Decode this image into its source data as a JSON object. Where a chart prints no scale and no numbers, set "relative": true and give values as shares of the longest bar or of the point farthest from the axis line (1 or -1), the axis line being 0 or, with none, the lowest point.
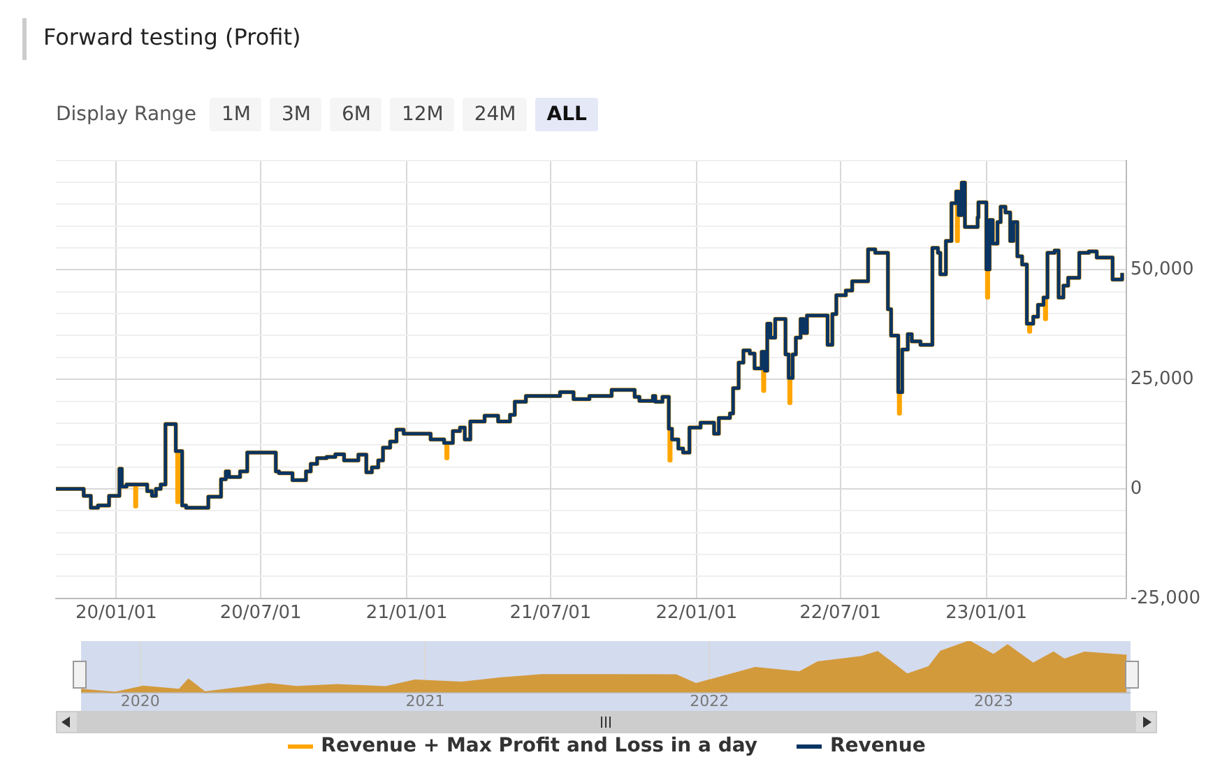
{
  "chart_data": [
    {
      "type": "step",
      "title": "Forward testing (Profit)",
      "annotations": [
        "Display Range",
        "1M",
        "3M",
        "6M",
        "12M",
        "24M",
        "ALL"
      ],
      "legend": "bottom",
      "grid": true,
      "xlim": [
        "2019-10-17",
        "2023-06-26"
      ],
      "xticks": [
        {
          "value": "2020-01-01",
          "label": "20/01/01"
        },
        {
          "value": "2020-07-01",
          "label": "20/07/01"
        },
        {
          "value": "2021-01-01",
          "label": "21/01/01"
        },
        {
          "value": "2021-07-01",
          "label": "21/07/01"
        },
        {
          "value": "2022-01-01",
          "label": "22/01/01"
        },
        {
          "value": "2022-07-01",
          "label": "22/07/01"
        },
        {
          "value": "2023-01-01",
          "label": "23/01/01"
        }
      ],
      "ylim": [
        -25000,
        75000
      ],
      "yticks": [
        {
          "value": -25000,
          "label": "-25,000"
        },
        {
          "value": -20000,
          "label": null
        },
        {
          "value": -15000,
          "label": null
        },
        {
          "value": -10000,
          "label": null
        },
        {
          "value": -5000,
          "label": null
        },
        0,
        {
          "value": 5000,
          "label": null
        },
        {
          "value": 10000,
          "label": null
        },
        {
          "value": 15000,
          "label": null
        },
        {
          "value": 20000,
          "label": null
        },
        {
          "value": 25000,
          "label": "25,000"
        },
        {
          "value": 30000,
          "label": null
        },
        {
          "value": 35000,
          "label": null
        },
        {
          "value": 40000,
          "label": null
        },
        {
          "value": 45000,
          "label": null
        },
        {
          "value": 50000,
          "label": "50,000"
        },
        {
          "value": 55000,
          "label": null
        },
        {
          "value": 60000,
          "label": null
        },
        {
          "value": 65000,
          "label": null
        },
        {
          "value": 70000,
          "label": null
        },
        {
          "value": 75000,
          "label": null
        }
      ],
      "series": [
        {
          "name": "Revenue + Max Profit and Loss in a day",
          "color": "#ffa500",
          "x": [
            "2019-10-17",
            "2019-11-21",
            "2019-11-30",
            "2019-12-09",
            "2019-12-23",
            "2020-01-05",
            "2020-01-08",
            "2020-01-14",
            "2020-01-25",
            "2020-01-26",
            "2020-02-09",
            "2020-02-15",
            "2020-02-20",
            "2020-02-26",
            "2020-03-03",
            "2020-03-16",
            "2020-03-18",
            "2020-03-19",
            "2020-03-24",
            "2020-03-29",
            "2020-04-26",
            "2020-05-12",
            "2020-05-18",
            "2020-05-22",
            "2020-06-05",
            "2020-06-14",
            "2020-07-20",
            "2020-07-24",
            "2020-08-10",
            "2020-08-27",
            "2020-09-02",
            "2020-09-10",
            "2020-09-22",
            "2020-10-03",
            "2020-10-14",
            "2020-11-01",
            "2020-11-11",
            "2020-11-18",
            "2020-11-26",
            "2020-12-02",
            "2020-12-11",
            "2020-12-19",
            "2020-12-28",
            "2021-01-31",
            "2021-02-17",
            "2021-02-20",
            "2021-02-21",
            "2021-02-28",
            "2021-03-09",
            "2021-03-15",
            "2021-03-22",
            "2021-04-09",
            "2021-04-26",
            "2021-05-11",
            "2021-05-17",
            "2021-05-31",
            "2021-07-13",
            "2021-07-30",
            "2021-08-19",
            "2021-09-16",
            "2021-10-15",
            "2021-10-21",
            "2021-11-07",
            "2021-11-10",
            "2021-11-19",
            "2021-11-27",
            "2021-11-28",
            "2021-11-29",
            "2021-12-01",
            "2021-12-09",
            "2021-12-15",
            "2021-12-23",
            "2022-01-06",
            "2022-01-23",
            "2022-01-29",
            "2022-02-12",
            "2022-02-16",
            "2022-02-23",
            "2022-03-01",
            "2022-03-09",
            "2022-03-15",
            "2022-03-24",
            "2022-03-26",
            "2022-03-27",
            "2022-03-28",
            "2022-03-31",
            "2022-04-04",
            "2022-04-10",
            "2022-04-23",
            "2022-04-27",
            "2022-04-28",
            "2022-04-29",
            "2022-05-02",
            "2022-05-06",
            "2022-05-12",
            "2022-05-16",
            "2022-05-20",
            "2022-06-15",
            "2022-06-21",
            "2022-06-26",
            "2022-07-08",
            "2022-07-16",
            "2022-08-05",
            "2022-08-14",
            "2022-08-30",
            "2022-09-03",
            "2022-09-12",
            "2022-09-13",
            "2022-09-14",
            "2022-09-17",
            "2022-09-24",
            "2022-09-29",
            "2022-10-10",
            "2022-10-25",
            "2022-11-01",
            "2022-11-04",
            "2022-11-11",
            "2022-11-18",
            "2022-11-24",
            "2022-11-25",
            "2022-11-26",
            "2022-11-27",
            "2022-12-01",
            "2022-12-05",
            "2022-12-21",
            "2022-12-22",
            "2023-01-01",
            "2023-01-02",
            "2023-01-03",
            "2023-01-05",
            "2023-01-09",
            "2023-01-15",
            "2023-01-19",
            "2023-01-25",
            "2023-01-31",
            "2023-02-04",
            "2023-02-09",
            "2023-02-15",
            "2023-02-21",
            "2023-02-24",
            "2023-02-25",
            "2023-03-01",
            "2023-03-07",
            "2023-03-14",
            "2023-03-16",
            "2023-03-17",
            "2023-03-19",
            "2023-03-28",
            "2023-04-02",
            "2023-04-08",
            "2023-04-14",
            "2023-04-28",
            "2023-05-10",
            "2023-05-20",
            "2023-06-09",
            "2023-06-21"
          ],
          "values": [
            0,
            -1600,
            -4300,
            -3800,
            -1600,
            4600,
            500,
            1000,
            -4000,
            1000,
            -500,
            -1600,
            0,
            1000,
            14800,
            8600,
            -3000,
            8600,
            -3800,
            -4300,
            -1800,
            2200,
            4000,
            2700,
            4000,
            8300,
            4000,
            3600,
            2000,
            4000,
            5700,
            7000,
            7300,
            7900,
            6500,
            7800,
            3800,
            4900,
            6500,
            9400,
            10800,
            13500,
            12600,
            11300,
            10500,
            7000,
            10500,
            13200,
            14000,
            11300,
            15400,
            16700,
            15400,
            16900,
            19900,
            21200,
            22100,
            20500,
            21200,
            22600,
            21000,
            20100,
            21200,
            19900,
            21000,
            13700,
            6500,
            13700,
            11300,
            9200,
            8300,
            14000,
            15100,
            12600,
            16200,
            17200,
            23000,
            28800,
            31600,
            30900,
            27500,
            31300,
            22400,
            31300,
            27000,
            37700,
            34500,
            38800,
            30700,
            25300,
            19600,
            25300,
            30700,
            34500,
            38800,
            35600,
            39600,
            32900,
            39900,
            44200,
            45300,
            47400,
            54700,
            53900,
            41000,
            35000,
            22100,
            17200,
            22100,
            31800,
            35300,
            33700,
            32900,
            55000,
            53900,
            49000,
            56600,
            65200,
            67900,
            56600,
            67900,
            62500,
            69900,
            59800,
            62000,
            65400,
            50100,
            43700,
            50100,
            61400,
            56000,
            60900,
            64400,
            63100,
            56600,
            60900,
            53100,
            51200,
            37700,
            35900,
            37700,
            39300,
            42000,
            43700,
            38800,
            43700,
            53900,
            54400,
            43700,
            46400,
            48200,
            53900,
            54200,
            52800,
            47800,
            49300
          ]
        },
        {
          "name": "Revenue",
          "color": "#0a3462",
          "x": [
            "2019-10-17",
            "2019-11-21",
            "2019-11-30",
            "2019-12-09",
            "2019-12-23",
            "2020-01-05",
            "2020-01-08",
            "2020-01-14",
            "2020-02-09",
            "2020-02-15",
            "2020-02-20",
            "2020-02-26",
            "2020-03-03",
            "2020-03-16",
            "2020-03-24",
            "2020-03-29",
            "2020-04-26",
            "2020-05-12",
            "2020-05-18",
            "2020-05-22",
            "2020-06-05",
            "2020-06-14",
            "2020-07-20",
            "2020-07-24",
            "2020-08-10",
            "2020-08-27",
            "2020-09-02",
            "2020-09-10",
            "2020-09-22",
            "2020-10-03",
            "2020-10-14",
            "2020-11-01",
            "2020-11-11",
            "2020-11-18",
            "2020-11-26",
            "2020-12-02",
            "2020-12-11",
            "2020-12-19",
            "2020-12-28",
            "2021-01-31",
            "2021-02-17",
            "2021-02-28",
            "2021-03-09",
            "2021-03-15",
            "2021-03-22",
            "2021-04-09",
            "2021-04-26",
            "2021-05-11",
            "2021-05-17",
            "2021-05-31",
            "2021-07-13",
            "2021-07-30",
            "2021-08-19",
            "2021-09-16",
            "2021-10-15",
            "2021-10-21",
            "2021-11-07",
            "2021-11-10",
            "2021-11-19",
            "2021-11-27",
            "2021-12-01",
            "2021-12-09",
            "2021-12-15",
            "2021-12-23",
            "2022-01-06",
            "2022-01-23",
            "2022-01-29",
            "2022-02-12",
            "2022-02-16",
            "2022-02-23",
            "2022-03-01",
            "2022-03-09",
            "2022-03-15",
            "2022-03-24",
            "2022-03-28",
            "2022-03-31",
            "2022-04-04",
            "2022-04-10",
            "2022-04-23",
            "2022-04-27",
            "2022-05-02",
            "2022-05-06",
            "2022-05-12",
            "2022-05-16",
            "2022-05-20",
            "2022-06-15",
            "2022-06-21",
            "2022-06-26",
            "2022-07-08",
            "2022-07-16",
            "2022-08-05",
            "2022-08-14",
            "2022-08-30",
            "2022-09-03",
            "2022-09-12",
            "2022-09-17",
            "2022-09-24",
            "2022-09-29",
            "2022-10-10",
            "2022-10-25",
            "2022-11-01",
            "2022-11-04",
            "2022-11-11",
            "2022-11-18",
            "2022-11-24",
            "2022-11-27",
            "2022-12-01",
            "2022-12-05",
            "2022-12-21",
            "2022-12-22",
            "2023-01-01",
            "2023-01-05",
            "2023-01-09",
            "2023-01-15",
            "2023-01-19",
            "2023-01-25",
            "2023-01-31",
            "2023-02-04",
            "2023-02-09",
            "2023-02-15",
            "2023-02-21",
            "2023-03-01",
            "2023-03-07",
            "2023-03-14",
            "2023-03-19",
            "2023-03-28",
            "2023-04-02",
            "2023-04-08",
            "2023-04-14",
            "2023-04-28",
            "2023-05-10",
            "2023-05-20",
            "2023-06-09",
            "2023-06-21"
          ],
          "values": [
            0,
            -1600,
            -4300,
            -3800,
            -1600,
            4600,
            500,
            1000,
            -500,
            -1600,
            0,
            1000,
            14800,
            8600,
            -3800,
            -4300,
            -1800,
            2200,
            4000,
            2700,
            4000,
            8300,
            4000,
            3600,
            2000,
            4000,
            5700,
            7000,
            7300,
            7900,
            6500,
            7800,
            3800,
            4900,
            6500,
            9400,
            10800,
            13500,
            12600,
            11300,
            10500,
            13200,
            14000,
            11300,
            15400,
            16700,
            15400,
            16900,
            19900,
            21200,
            22100,
            20500,
            21200,
            22600,
            21000,
            20100,
            21200,
            19900,
            21000,
            13700,
            11300,
            9200,
            8300,
            14000,
            15100,
            12600,
            16200,
            17200,
            23000,
            28800,
            31600,
            30900,
            27500,
            31300,
            27000,
            37700,
            34500,
            38800,
            30700,
            25300,
            30700,
            34500,
            38800,
            35600,
            39600,
            32900,
            39900,
            44200,
            45300,
            47400,
            54700,
            53900,
            41000,
            35000,
            22100,
            31800,
            35300,
            33700,
            32900,
            55000,
            53900,
            49000,
            56600,
            65200,
            67900,
            62500,
            69900,
            59800,
            62000,
            65400,
            50100,
            61400,
            56000,
            60900,
            64400,
            63100,
            56600,
            60900,
            53100,
            51200,
            37700,
            39300,
            42000,
            43700,
            53900,
            54400,
            43700,
            46400,
            48200,
            53900,
            54200,
            52800,
            47800,
            49300
          ]
        }
      ]
    },
    {
      "type": "area",
      "relative": true,
      "grid": "x",
      "tick_labels": "x",
      "xlim": [
        "2019-10-17",
        "2023-06-26"
      ],
      "xticks": [
        {
          "value": "2020-01-01",
          "label": "2020"
        },
        {
          "value": "2021-01-01",
          "label": "2021"
        },
        {
          "value": "2022-01-01",
          "label": "2022"
        },
        {
          "value": "2023-01-01",
          "label": "2023"
        }
      ],
      "series": [
        {
          "color": "#d39a3c",
          "x": [
            "2019-10-17",
            "2019-11-30",
            "2020-01-05",
            "2020-02-20",
            "2020-03-03",
            "2020-03-24",
            "2020-05-18",
            "2020-06-14",
            "2020-07-20",
            "2020-09-10",
            "2020-11-11",
            "2020-12-19",
            "2021-02-17",
            "2021-04-09",
            "2021-05-31",
            "2021-08-30",
            "2021-11-19",
            "2021-12-15",
            "2022-01-06",
            "2022-03-01",
            "2022-04-27",
            "2022-05-20",
            "2022-07-16",
            "2022-08-05",
            "2022-09-12",
            "2022-10-10",
            "2022-10-25",
            "2022-12-01",
            "2023-01-01",
            "2023-01-19",
            "2023-02-21",
            "2023-03-19",
            "2023-04-02",
            "2023-04-28",
            "2023-06-21"
          ],
          "values": [
            0.058,
            0,
            0.12,
            0.058,
            0.257,
            0.007,
            0.112,
            0.17,
            0.112,
            0.152,
            0.109,
            0.24,
            0.2,
            0.283,
            0.344,
            0.344,
            0.341,
            0.17,
            0.261,
            0.484,
            0.399,
            0.592,
            0.697,
            0.795,
            0.356,
            0.501,
            0.799,
            1,
            0.733,
            0.926,
            0.566,
            0.784,
            0.647,
            0.784,
            0.722
          ]
        }
      ]
    }
  ]
}
